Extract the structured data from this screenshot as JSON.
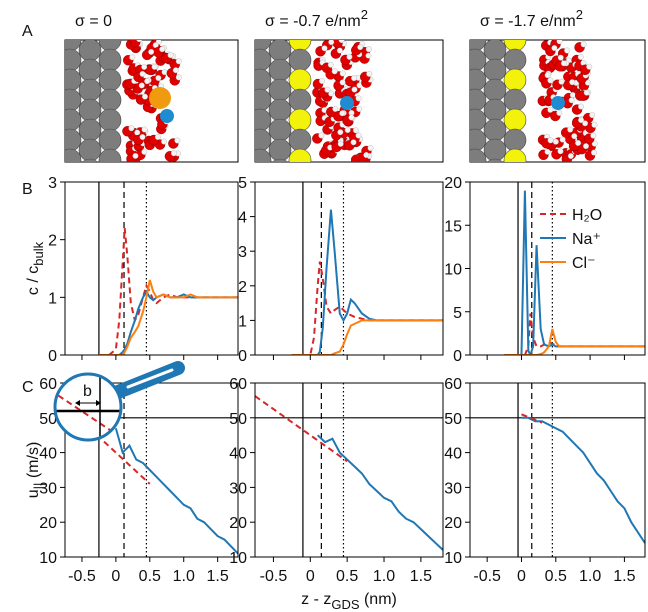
{
  "panel_labels": [
    "A",
    "B",
    "C"
  ],
  "panel_a": {
    "titles": [
      {
        "main": "σ = 0",
        "sup": null
      },
      {
        "main": "σ = -0.7 e/nm",
        "sup": "2"
      },
      {
        "main": "σ = -1.7 e/nm",
        "sup": "2"
      }
    ]
  },
  "chart_data": [
    {
      "type": "line",
      "ylabel": {
        "main": "c / c",
        "sub": "bulk"
      },
      "x": [
        -0.25,
        -0.1,
        0,
        0.05,
        0.1,
        0.13,
        0.17,
        0.22,
        0.28,
        0.33,
        0.4,
        0.45,
        0.5,
        0.55,
        0.6,
        0.7,
        0.8,
        0.9,
        1.0,
        1.1,
        1.2,
        1.3,
        1.4,
        1.5,
        1.6,
        1.7,
        1.8
      ],
      "series": [
        {
          "name": "H₂O",
          "color": "#d62728",
          "line_style": "dashed",
          "values": [
            0,
            0,
            0.1,
            0.6,
            1.6,
            2.2,
            1.7,
            0.9,
            0.6,
            0.7,
            1.0,
            1.2,
            1.1,
            0.95,
            0.9,
            1.0,
            1.05,
            1.0,
            1.0,
            1.0,
            1.0,
            1.0,
            1.0,
            1.0,
            1.0,
            1.0,
            1.0
          ]
        },
        {
          "name": "Na⁺",
          "color": "#1f77b4",
          "line_style": "solid",
          "values": [
            0,
            0,
            0,
            0,
            0.05,
            0.1,
            0.2,
            0.4,
            0.6,
            0.8,
            1.0,
            1.1,
            1.0,
            0.95,
            1.0,
            1.05,
            1.0,
            1.0,
            1.05,
            1.0,
            1.0,
            1.0,
            1.0,
            1.0,
            1.0,
            1.0,
            1.0
          ]
        },
        {
          "name": "Cl⁻",
          "color": "#ff7f0e",
          "line_style": "solid",
          "values": [
            0,
            0,
            0,
            0,
            0,
            0.05,
            0.15,
            0.3,
            0.4,
            0.5,
            0.75,
            1.0,
            1.3,
            1.1,
            1.0,
            1.05,
            1.0,
            1.0,
            1.0,
            1.05,
            1.0,
            1.0,
            1.0,
            1.0,
            1.0,
            1.0,
            1.0
          ]
        }
      ],
      "xlim": [
        -0.75,
        1.8
      ],
      "xticks": [
        -0.5,
        0,
        0.5,
        1,
        1.5
      ],
      "xtick_labels": false,
      "ylim": [
        0,
        3
      ],
      "yticks": [
        0,
        1,
        2,
        3
      ],
      "vlines": [
        {
          "value": -0.25,
          "style": "solid"
        },
        {
          "value": 0.12,
          "style": "dashed"
        },
        {
          "value": 0.45,
          "style": "dotted"
        }
      ]
    },
    {
      "type": "line",
      "x": [
        -0.25,
        -0.1,
        0,
        0.05,
        0.1,
        0.13,
        0.17,
        0.22,
        0.28,
        0.33,
        0.4,
        0.45,
        0.5,
        0.55,
        0.6,
        0.7,
        0.8,
        0.9,
        1.0,
        1.1,
        1.2,
        1.3,
        1.4,
        1.5,
        1.6,
        1.7,
        1.8
      ],
      "series": [
        {
          "name": "H₂O",
          "color": "#d62728",
          "line_style": "dashed",
          "values": [
            0,
            0,
            0,
            0.5,
            2.0,
            2.7,
            2.2,
            1.4,
            1.2,
            1.3,
            1.4,
            1.3,
            1.2,
            1.15,
            1.1,
            1.05,
            1.0,
            1.0,
            1.0,
            1.0,
            1.0,
            1.0,
            1.0,
            1.0,
            1.0,
            1.0,
            1.0
          ]
        },
        {
          "name": "Na⁺",
          "color": "#1f77b4",
          "line_style": "solid",
          "values": [
            0,
            0,
            0,
            0,
            0,
            0.1,
            0.8,
            2.5,
            4.2,
            3.0,
            1.2,
            1.0,
            1.2,
            1.6,
            1.5,
            1.2,
            1.05,
            1.0,
            1.0,
            1.0,
            1.0,
            1.0,
            1.0,
            1.0,
            1.0,
            1.0,
            1.0
          ]
        },
        {
          "name": "Cl⁻",
          "color": "#ff7f0e",
          "line_style": "solid",
          "values": [
            0,
            0,
            0,
            0,
            0,
            0,
            0,
            0,
            0,
            0.05,
            0.1,
            0.3,
            0.6,
            0.85,
            0.9,
            1.0,
            1.0,
            1.0,
            1.0,
            1.0,
            1.0,
            1.0,
            1.0,
            1.0,
            1.0,
            1.0,
            1.0
          ]
        }
      ],
      "xlim": [
        -0.75,
        1.8
      ],
      "xticks": [
        -0.5,
        0,
        0.5,
        1,
        1.5
      ],
      "xtick_labels": false,
      "ylim": [
        0,
        5
      ],
      "yticks": [
        0,
        1,
        2,
        3,
        4,
        5
      ],
      "vlines": [
        {
          "value": -0.1,
          "style": "solid"
        },
        {
          "value": 0.15,
          "style": "dashed"
        },
        {
          "value": 0.45,
          "style": "dotted"
        }
      ]
    },
    {
      "type": "line",
      "x": [
        -0.25,
        -0.1,
        0,
        0.05,
        0.1,
        0.13,
        0.17,
        0.22,
        0.28,
        0.33,
        0.4,
        0.45,
        0.5,
        0.55,
        0.6,
        0.7,
        0.8,
        0.9,
        1.0,
        1.1,
        1.2,
        1.3,
        1.4,
        1.5,
        1.6,
        1.7,
        1.8
      ],
      "series": [
        {
          "name": "H₂O",
          "color": "#d62728",
          "line_style": "dashed",
          "values": [
            0,
            0,
            0,
            0,
            1,
            4.8,
            2,
            1,
            1,
            1.2,
            1.5,
            1.3,
            1.1,
            1.0,
            1.0,
            1.0,
            1.0,
            1.0,
            1.0,
            1.0,
            1.0,
            1.0,
            1.0,
            1.0,
            1.0,
            1.0,
            1.0
          ]
        },
        {
          "name": "Na⁺",
          "color": "#1f77b4",
          "line_style": "solid",
          "values": [
            0,
            0,
            0,
            19,
            0.5,
            0,
            1,
            12.7,
            3,
            1.2,
            1.0,
            1.2,
            1.0,
            1.0,
            1.0,
            1.0,
            1.0,
            1.0,
            1.0,
            1.0,
            1.0,
            1.0,
            1.0,
            1.0,
            1.0,
            1.0,
            1.0
          ]
        },
        {
          "name": "Cl⁻",
          "color": "#ff7f0e",
          "line_style": "solid",
          "values": [
            0,
            0,
            0,
            0,
            0,
            0,
            0,
            0,
            0.1,
            0.3,
            1.0,
            3.0,
            1.5,
            1.0,
            1.0,
            1.0,
            1.0,
            1.0,
            1.0,
            1.0,
            1.0,
            1.0,
            1.0,
            1.0,
            1.0,
            1.0,
            1.0
          ]
        }
      ],
      "xlim": [
        -0.75,
        1.8
      ],
      "xticks": [
        -0.5,
        0,
        0.5,
        1,
        1.5
      ],
      "xtick_labels": false,
      "ylim": [
        0,
        20
      ],
      "yticks": [
        0,
        5,
        10,
        15,
        20
      ],
      "legend": "upper right",
      "vlines": [
        {
          "value": -0.05,
          "style": "solid"
        },
        {
          "value": 0.15,
          "style": "dashed"
        },
        {
          "value": 0.45,
          "style": "dotted"
        }
      ]
    },
    {
      "type": "line",
      "ylabel": {
        "main": "u",
        "sub": "||",
        "tail": " (m/s)"
      },
      "inset_label": "b",
      "x": [
        -0.75,
        -0.5,
        -0.25,
        0,
        0.1,
        0.2,
        0.3,
        0.4,
        0.5,
        0.6,
        0.7,
        0.8,
        0.9,
        1.0,
        1.1,
        1.2,
        1.3,
        1.4,
        1.5,
        1.6,
        1.7,
        1.8
      ],
      "series": [
        {
          "color": "#1f77b4",
          "line_style": "solid",
          "values": [
            null,
            null,
            null,
            47,
            40,
            42,
            38,
            37,
            35,
            33,
            31,
            29,
            27,
            25,
            24,
            21,
            20,
            18,
            16,
            15,
            13,
            11
          ]
        },
        {
          "color": "#d62728",
          "line_style": "dashed",
          "values": [
            null,
            49,
            44.5,
            40,
            38.2,
            36.4,
            34.6,
            32.8,
            31,
            null,
            null,
            null,
            null,
            null,
            null,
            null,
            null,
            null,
            null,
            null,
            null,
            null
          ]
        }
      ],
      "xlim": [
        -0.75,
        1.8
      ],
      "xticks": [
        {
          "value": -0.5,
          "label": "-0.5"
        },
        0,
        0.5,
        {
          "value": 1,
          "label": "1.0"
        },
        1.5
      ],
      "xtick_labels": true,
      "ylim": [
        10,
        60
      ],
      "yticks": [
        10,
        20,
        30,
        40,
        50,
        60
      ],
      "vlines": [
        {
          "value": -0.25,
          "style": "solid"
        },
        {
          "value": 0.12,
          "style": "dashed"
        },
        {
          "value": 0.45,
          "style": "dotted"
        }
      ],
      "hlines": [
        {
          "value": 50,
          "style": "solid"
        }
      ]
    },
    {
      "type": "line",
      "xlabel": {
        "main": "z - z",
        "sub": "GDS",
        "tail": " (nm)"
      },
      "x": [
        -0.75,
        -0.5,
        -0.25,
        0,
        0.1,
        0.2,
        0.3,
        0.4,
        0.5,
        0.6,
        0.7,
        0.8,
        0.9,
        1.0,
        1.1,
        1.2,
        1.3,
        1.4,
        1.5,
        1.6,
        1.7,
        1.8
      ],
      "series": [
        {
          "color": "#1f77b4",
          "line_style": "solid",
          "values": [
            null,
            null,
            null,
            null,
            45,
            43,
            44,
            40,
            38,
            36,
            34,
            31,
            29,
            27,
            26,
            23,
            21,
            20,
            18,
            16,
            14,
            12
          ]
        },
        {
          "color": "#d62728",
          "line_style": "dashed",
          "values": [
            56.25,
            52.5,
            48.75,
            45,
            43.5,
            42,
            40.5,
            39,
            37.5,
            null,
            null,
            null,
            null,
            null,
            null,
            null,
            null,
            null,
            null,
            null,
            null,
            null
          ]
        }
      ],
      "xlim": [
        -0.75,
        1.8
      ],
      "xticks": [
        {
          "value": -0.5,
          "label": "-0.5"
        },
        0,
        0.5,
        {
          "value": 1,
          "label": "1.0"
        },
        1.5
      ],
      "xtick_labels": true,
      "ylim": [
        10,
        60
      ],
      "yticks": [
        10,
        20,
        30,
        40,
        50,
        60
      ],
      "vlines": [
        {
          "value": -0.1,
          "style": "solid"
        },
        {
          "value": 0.15,
          "style": "dashed"
        },
        {
          "value": 0.45,
          "style": "dotted"
        }
      ],
      "hlines": [
        {
          "value": 50,
          "style": "solid"
        }
      ]
    },
    {
      "type": "line",
      "x": [
        -0.75,
        -0.5,
        -0.25,
        0,
        0.1,
        0.2,
        0.3,
        0.4,
        0.5,
        0.6,
        0.7,
        0.8,
        0.9,
        1.0,
        1.1,
        1.2,
        1.3,
        1.4,
        1.5,
        1.6,
        1.7,
        1.8
      ],
      "series": [
        {
          "color": "#1f77b4",
          "line_style": "solid",
          "values": [
            null,
            null,
            null,
            50,
            50,
            49,
            49,
            48,
            47,
            46,
            44,
            42,
            40,
            37,
            34,
            32,
            29,
            26,
            24,
            20,
            17,
            14
          ]
        },
        {
          "color": "#d62728",
          "line_style": "dashed",
          "values": [
            null,
            null,
            null,
            51,
            50.2,
            49.4,
            48.6,
            null,
            null,
            null,
            null,
            null,
            null,
            null,
            null,
            null,
            null,
            null,
            null,
            null,
            null,
            null
          ]
        }
      ],
      "xlim": [
        -0.75,
        1.8
      ],
      "xticks": [
        {
          "value": -0.5,
          "label": "-0.5"
        },
        0,
        0.5,
        {
          "value": 1,
          "label": "1.0"
        },
        1.5
      ],
      "xtick_labels": true,
      "ylim": [
        10,
        60
      ],
      "yticks": [
        10,
        20,
        30,
        40,
        50,
        60
      ],
      "vlines": [
        {
          "value": -0.05,
          "style": "solid"
        },
        {
          "value": 0.15,
          "style": "dashed"
        },
        {
          "value": 0.45,
          "style": "dotted"
        }
      ],
      "hlines": [
        {
          "value": 50,
          "style": "solid"
        }
      ]
    }
  ]
}
